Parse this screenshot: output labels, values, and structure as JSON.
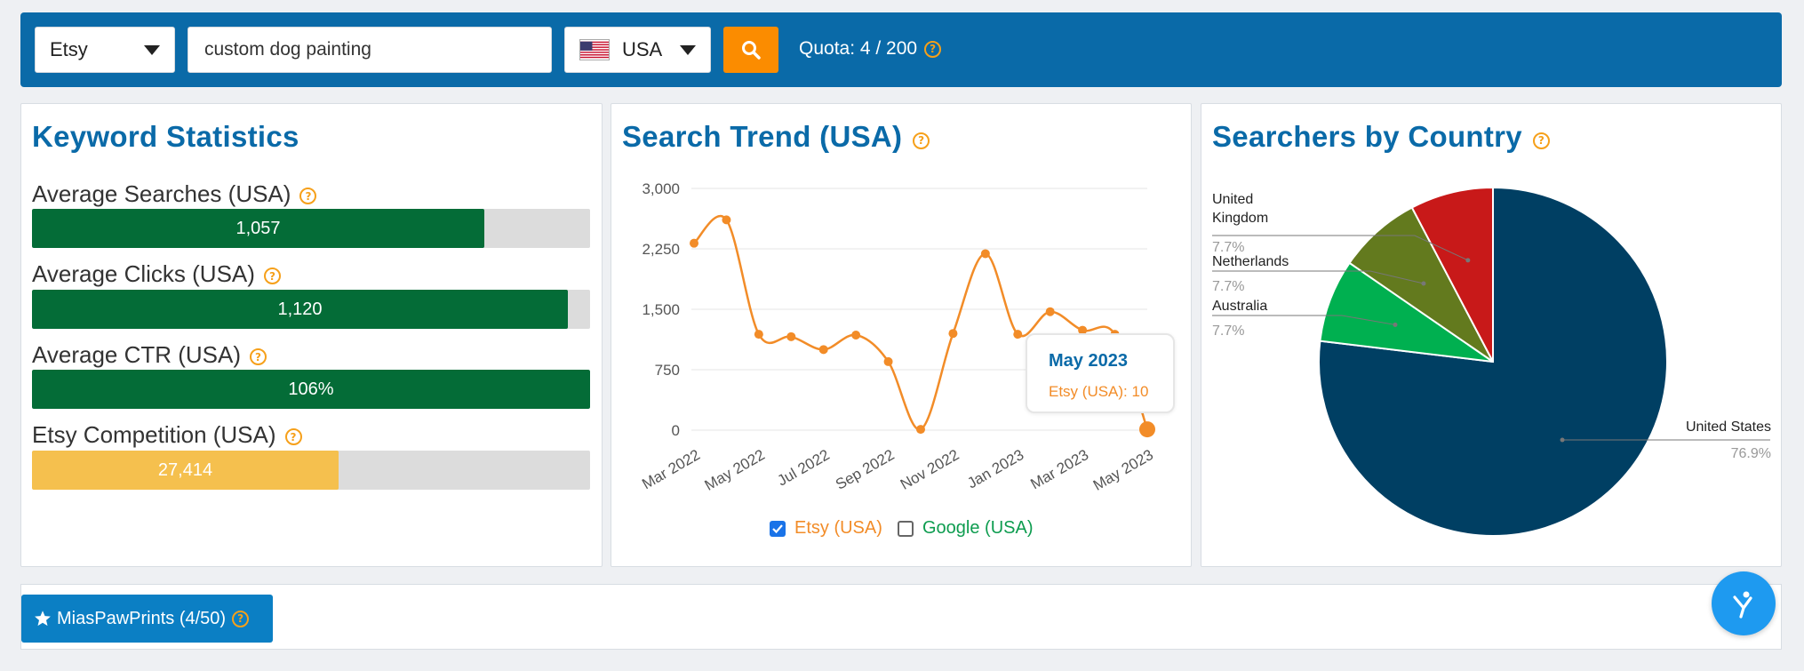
{
  "toolbar": {
    "platform_select": "Etsy",
    "search_query": "custom dog painting",
    "country_select": "USA",
    "quota_text": "Quota: 4 / 200"
  },
  "keyword_stats": {
    "title": "Keyword Statistics",
    "items": [
      {
        "label": "Average Searches (USA)",
        "value_text": "1,057",
        "fill": 0.81,
        "color": "#046c37"
      },
      {
        "label": "Average Clicks (USA)",
        "value_text": "1,120",
        "fill": 0.96,
        "color": "#046c37"
      },
      {
        "label": "Average CTR (USA)",
        "value_text": "106%",
        "fill": 1.0,
        "color": "#046c37"
      },
      {
        "label": "Etsy Competition (USA)",
        "value_text": "27,414",
        "fill": 0.55,
        "color": "#f5c04e"
      }
    ]
  },
  "search_trend": {
    "title": "Search Trend (USA)",
    "legend": [
      {
        "label": "Etsy (USA)",
        "checked": true,
        "color": "#f28c28"
      },
      {
        "label": "Google (USA)",
        "checked": false,
        "color": "#0d9c4f"
      }
    ],
    "tooltip": {
      "title": "May 2023",
      "value": "Etsy (USA): 10"
    }
  },
  "countries": {
    "title": "Searchers by Country"
  },
  "chart_data": [
    {
      "type": "line",
      "x": [
        "Mar 2022",
        "Apr 2022",
        "May 2022",
        "Jun 2022",
        "Jul 2022",
        "Aug 2022",
        "Sep 2022",
        "Oct 2022",
        "Nov 2022",
        "Dec 2022",
        "Jan 2023",
        "Feb 2023",
        "Mar 2023",
        "Apr 2023",
        "May 2023"
      ],
      "x_tick_labels": [
        "Mar 2022",
        "May 2022",
        "Jul 2022",
        "Sep 2022",
        "Nov 2022",
        "Jan 2023",
        "Mar 2023",
        "May 2023"
      ],
      "series": [
        {
          "name": "Etsy (USA)",
          "values": [
            2320,
            2610,
            1190,
            1160,
            1000,
            1180,
            850,
            10,
            1200,
            2190,
            1190,
            1470,
            1240,
            1190,
            10
          ],
          "color": "#f28c28"
        }
      ],
      "y_ticks": [
        0,
        750,
        1500,
        2250,
        3000
      ],
      "y_tick_labels": [
        "0",
        "750",
        "1,500",
        "2,250",
        "3,000"
      ],
      "ylim": [
        0,
        3000
      ],
      "grid": true
    },
    {
      "type": "pie",
      "slices": [
        {
          "label": "United States",
          "value": 76.9,
          "value_text": "76.9%",
          "color": "#003f63"
        },
        {
          "label": "Australia",
          "value": 7.7,
          "value_text": "7.7%",
          "color": "#00b050"
        },
        {
          "label": "Netherlands",
          "value": 7.7,
          "value_text": "7.7%",
          "color": "#637a1e"
        },
        {
          "label": "United Kingdom",
          "value": 7.7,
          "value_text": "7.7%",
          "color": "#c81919"
        }
      ]
    }
  ],
  "bottom": {
    "shop_button": "MiasPawPrints (4/50)"
  }
}
